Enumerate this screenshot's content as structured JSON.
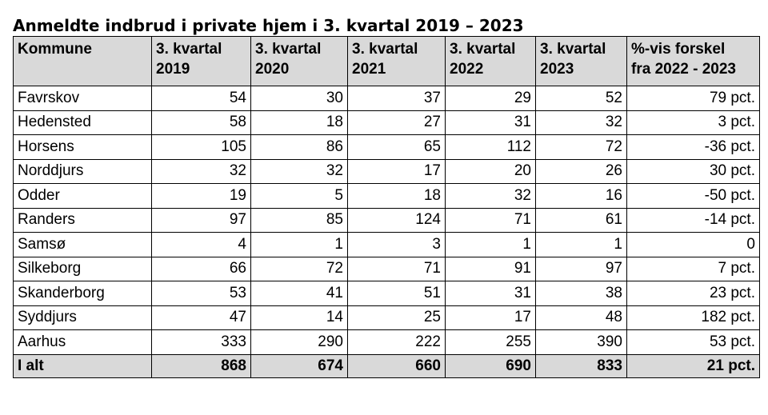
{
  "chart_data": {
    "type": "table",
    "title": "Anmeldte indbrud i private hjem i 3. kvartal 2019 – 2023",
    "columns": [
      "Kommune",
      "3. kvartal 2019",
      "3. kvartal 2020",
      "3. kvartal 2021",
      "3. kvartal 2022",
      "3. kvartal 2023",
      "%-vis forskel fra 2022 - 2023"
    ],
    "header_lines": [
      [
        "Kommune",
        ""
      ],
      [
        "3. kvartal",
        "2019"
      ],
      [
        "3. kvartal",
        "2020"
      ],
      [
        "3. kvartal",
        "2021"
      ],
      [
        "3. kvartal",
        "2022"
      ],
      [
        "3. kvartal",
        "2023"
      ],
      [
        "%-vis forskel",
        "fra 2022 - 2023"
      ]
    ],
    "rows": [
      [
        "Favrskov",
        "54",
        "30",
        "37",
        "29",
        "52",
        "79 pct."
      ],
      [
        "Hedensted",
        "58",
        "18",
        "27",
        "31",
        "32",
        "3 pct."
      ],
      [
        "Horsens",
        "105",
        "86",
        "65",
        "112",
        "72",
        "-36 pct."
      ],
      [
        "Norddjurs",
        "32",
        "32",
        "17",
        "20",
        "26",
        "30 pct."
      ],
      [
        "Odder",
        "19",
        "5",
        "18",
        "32",
        "16",
        "-50 pct."
      ],
      [
        "Randers",
        "97",
        "85",
        "124",
        "71",
        "61",
        "-14 pct."
      ],
      [
        "Samsø",
        "4",
        "1",
        "3",
        "1",
        "1",
        "0"
      ],
      [
        "Silkeborg",
        "66",
        "72",
        "71",
        "91",
        "97",
        "7 pct."
      ],
      [
        "Skanderborg",
        "53",
        "41",
        "51",
        "31",
        "38",
        "23 pct."
      ],
      [
        "Syddjurs",
        "47",
        "14",
        "25",
        "17",
        "48",
        "182 pct."
      ],
      [
        "Aarhus",
        "333",
        "290",
        "222",
        "255",
        "390",
        "53 pct."
      ]
    ],
    "total": [
      "I alt",
      "868",
      "674",
      "660",
      "690",
      "833",
      "21 pct."
    ]
  },
  "colors": {
    "header_bg": "#d9d9d9",
    "border": "#000000"
  }
}
